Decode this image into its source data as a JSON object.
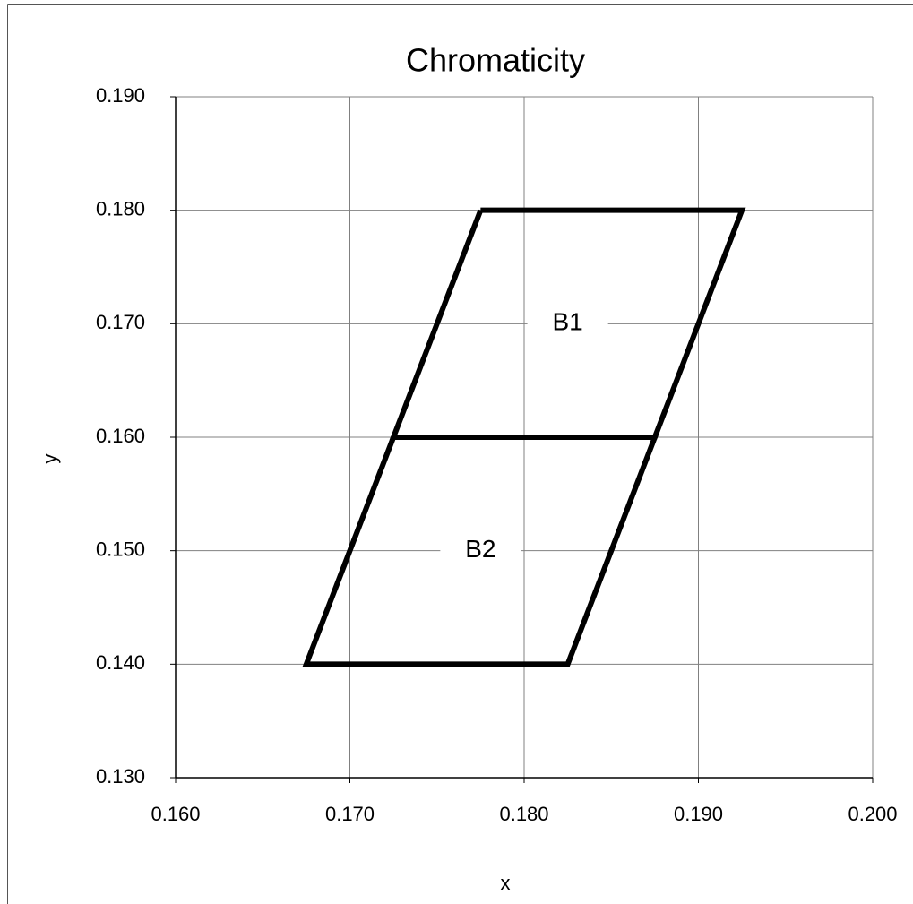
{
  "chart_data": {
    "type": "line",
    "title": "Chromaticity",
    "x_label": "x",
    "y_label": "y",
    "series": [
      {
        "name": "B1",
        "color": "#000000",
        "x": [
          0.1775,
          0.1925,
          0.1875,
          0.1725,
          0.1775
        ],
        "values": [
          0.18,
          0.18,
          0.16,
          0.16,
          0.18
        ]
      },
      {
        "name": "B2",
        "color": "#000000",
        "x": [
          0.1725,
          0.1875,
          0.1825,
          0.1675,
          0.1725
        ],
        "values": [
          0.16,
          0.16,
          0.14,
          0.14,
          0.16
        ]
      }
    ],
    "xlim": [
      0.16,
      0.2
    ],
    "xticks": [
      {
        "value": 0.16,
        "label": "0.160"
      },
      {
        "value": 0.17,
        "label": "0.170"
      },
      {
        "value": 0.18,
        "label": "0.180"
      },
      {
        "value": 0.19,
        "label": "0.190"
      },
      {
        "value": 0.2,
        "label": "0.200"
      }
    ],
    "ylim": [
      0.13,
      0.19
    ],
    "yticks": [
      {
        "value": 0.13,
        "label": "0.130"
      },
      {
        "value": 0.14,
        "label": "0.140"
      },
      {
        "value": 0.15,
        "label": "0.150"
      },
      {
        "value": 0.16,
        "label": "0.160"
      },
      {
        "value": 0.17,
        "label": "0.170"
      },
      {
        "value": 0.18,
        "label": "0.180"
      },
      {
        "value": 0.19,
        "label": "0.190"
      }
    ],
    "grid": true
  }
}
